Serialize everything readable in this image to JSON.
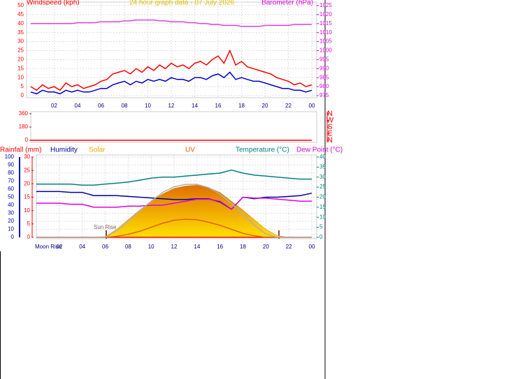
{
  "chart_data": [
    {
      "type": "line",
      "title": "24 hour graph data - 07 July 2026",
      "y_label": "Windspeed (kph)",
      "y2_label": "Barometer (hPa)",
      "x": [
        0,
        0.5,
        1,
        1.5,
        2,
        2.5,
        3,
        3.5,
        4,
        4.5,
        5,
        5.5,
        6,
        6.5,
        7,
        7.5,
        8,
        8.5,
        9,
        9.5,
        10,
        10.5,
        11,
        11.5,
        12,
        12.5,
        13,
        13.5,
        14,
        14.5,
        15,
        15.5,
        16,
        16.5,
        17,
        17.5,
        18,
        18.5,
        19,
        19.5,
        20,
        20.5,
        21,
        21.5,
        22,
        22.5,
        23,
        23.5,
        24
      ],
      "xlim": [
        0,
        24
      ],
      "xticks": [
        {
          "value": 2,
          "label": "02"
        },
        {
          "value": 4,
          "label": "04"
        },
        {
          "value": 6,
          "label": "06"
        },
        {
          "value": 8,
          "label": "08"
        },
        10,
        12,
        14,
        16,
        18,
        20,
        22,
        {
          "value": 24,
          "label": "00"
        }
      ],
      "ylim": [
        0,
        50
      ],
      "yticks": [
        0,
        5,
        10,
        15,
        20,
        25,
        30,
        35,
        40,
        45,
        50
      ],
      "y2lim": [
        975,
        1025
      ],
      "y2ticks": [
        975,
        980,
        985,
        990,
        995,
        1000,
        1005,
        1010,
        1015,
        1020,
        1025
      ],
      "grid": true,
      "series": [
        {
          "color": "#ff0000",
          "values": [
            5,
            3,
            6,
            4,
            5,
            3,
            7,
            5,
            6,
            4,
            5,
            6,
            8,
            9,
            12,
            13,
            14,
            12,
            15,
            13,
            16,
            14,
            17,
            15,
            18,
            16,
            17,
            15,
            18,
            19,
            17,
            20,
            22,
            18,
            25,
            17,
            19,
            16,
            15,
            14,
            13,
            12,
            10,
            9,
            8,
            6,
            7,
            5,
            6
          ]
        },
        {
          "color": "#0000cc",
          "values": [
            2,
            1,
            3,
            2,
            2,
            1,
            3,
            2,
            3,
            2,
            2,
            3,
            4,
            4,
            6,
            7,
            8,
            6,
            8,
            7,
            9,
            8,
            9,
            8,
            10,
            9,
            9,
            8,
            10,
            10,
            9,
            11,
            12,
            10,
            13,
            9,
            10,
            9,
            8,
            8,
            7,
            6,
            5,
            4,
            4,
            3,
            3,
            2,
            3
          ]
        },
        {
          "color": "#e040e0",
          "axis": "y2",
          "values": [
            1015,
            1015,
            1015,
            1015,
            1015,
            1015,
            1015,
            1015,
            1015.5,
            1015.5,
            1015.5,
            1015.5,
            1016,
            1016,
            1016,
            1016,
            1016.5,
            1016.5,
            1017,
            1017,
            1017,
            1017,
            1016.5,
            1016.5,
            1016,
            1016,
            1016,
            1015.5,
            1015.5,
            1015,
            1015,
            1014.5,
            1014.5,
            1014,
            1014,
            1014,
            1013.5,
            1013.5,
            1013.5,
            1013.5,
            1014,
            1014,
            1014,
            1014,
            1014,
            1014.5,
            1014.5,
            1014.5,
            1014.5
          ]
        }
      ]
    },
    {
      "type": "line",
      "x": [
        0,
        1,
        2,
        3,
        4,
        5,
        6,
        7,
        8,
        9,
        10,
        11,
        12,
        13,
        14,
        15,
        16,
        17,
        18,
        19,
        20,
        21,
        22,
        23,
        24
      ],
      "xlim": [
        0,
        24
      ],
      "ylim": [
        0,
        360
      ],
      "yticks": [
        0,
        180,
        360
      ],
      "y2lim": [
        0,
        360
      ],
      "y2ticks": [
        {
          "value": 360,
          "label": "N"
        },
        {
          "value": 270,
          "label": "W"
        },
        {
          "value": 180,
          "label": "S"
        },
        {
          "value": 90,
          "label": "E"
        },
        {
          "value": 0,
          "label": "N"
        }
      ],
      "series": [
        {
          "color": "#ff0000",
          "values": [
            0,
            0,
            0,
            0,
            0,
            0,
            0,
            0,
            0,
            0,
            0,
            0,
            0,
            0,
            0,
            0,
            0,
            0,
            0,
            0,
            0,
            0,
            0,
            0,
            0
          ]
        }
      ]
    },
    {
      "type": "line",
      "annotations": [
        "Sun Rise",
        "Moon Rise"
      ],
      "x": [
        0,
        1,
        2,
        3,
        4,
        5,
        6,
        7,
        8,
        9,
        10,
        11,
        12,
        13,
        14,
        15,
        16,
        17,
        18,
        19,
        20,
        21,
        22,
        23,
        24
      ],
      "xlim": [
        0,
        24
      ],
      "xticks": [
        {
          "value": 2,
          "label": "02"
        },
        {
          "value": 4,
          "label": "04"
        },
        {
          "value": 6,
          "label": "06"
        },
        {
          "value": 8,
          "label": "08"
        },
        10,
        12,
        14,
        16,
        18,
        20,
        22,
        {
          "value": 24,
          "label": "00"
        }
      ],
      "ylim": [
        0,
        100
      ],
      "yticks": [
        0,
        10,
        20,
        30,
        40,
        50,
        60,
        70,
        80,
        90,
        100
      ],
      "y2lim": [
        0,
        40
      ],
      "y2ticks": [
        0,
        5,
        10,
        15,
        20,
        25,
        30,
        35,
        40
      ],
      "y3lim": [
        0,
        30
      ],
      "y3ticks": [
        0,
        5,
        10,
        15,
        20,
        25,
        30
      ],
      "y4lim": [
        0,
        1000
      ],
      "y5lim": [
        0,
        16
      ],
      "grid": true,
      "series": [
        {
          "name": "Rainfall (mm)",
          "color": "#ff0000",
          "axis": "y3",
          "values": [
            0,
            0,
            0,
            0,
            0,
            0,
            0,
            0,
            0,
            0,
            0,
            0,
            0,
            0,
            0,
            0,
            0,
            0,
            0,
            0,
            0,
            0,
            0,
            0,
            0
          ]
        },
        {
          "name": "Humidity",
          "color": "#0000a0",
          "values": [
            57,
            57,
            57,
            56,
            56,
            52,
            52,
            52,
            51,
            50,
            49,
            48,
            47,
            47,
            48,
            48,
            44,
            35,
            50,
            48,
            50,
            50,
            51,
            52,
            55
          ]
        },
        {
          "name": "Solar",
          "color": "#e0b000",
          "axis": "y4",
          "area": true,
          "values": [
            0,
            0,
            0,
            0,
            0,
            0,
            10,
            100,
            220,
            340,
            450,
            540,
            610,
            640,
            650,
            620,
            560,
            450,
            340,
            220,
            100,
            20,
            0,
            0,
            0
          ]
        },
        {
          "name": "UV",
          "color": "#e06000",
          "axis": "y5",
          "values": [
            0,
            0,
            0,
            0,
            0,
            0,
            0,
            0.2,
            0.6,
            1.2,
            2,
            2.8,
            3.4,
            3.6,
            3.5,
            3,
            2.4,
            1.6,
            0.8,
            0.3,
            0,
            0,
            0,
            0,
            0
          ]
        },
        {
          "name": "Temperature (°C)",
          "color": "#008080",
          "axis": "y2",
          "values": [
            26.5,
            26.5,
            26.5,
            26.5,
            26,
            26,
            26.5,
            27,
            27.5,
            28.5,
            29.5,
            30,
            30,
            30.5,
            31,
            31.5,
            32,
            33.5,
            32,
            31,
            30.5,
            30,
            29.5,
            29,
            29
          ]
        },
        {
          "name": "Dew Point (°C)",
          "color": "#e000e0",
          "axis": "y2",
          "values": [
            17,
            17,
            17,
            16.5,
            16.5,
            15,
            15,
            15,
            15.5,
            15.5,
            16,
            16,
            17,
            18,
            19,
            19,
            18,
            14,
            20,
            19.5,
            19.5,
            19,
            18.5,
            18,
            18
          ]
        },
        {
          "color": "#b0b0b0",
          "axis": "y4",
          "values": [
            0,
            0,
            0,
            0,
            0,
            0,
            0,
            80,
            200,
            330,
            450,
            560,
            630,
            660,
            660,
            620,
            540,
            420,
            290,
            150,
            40,
            0,
            0,
            0,
            0
          ]
        }
      ]
    }
  ]
}
